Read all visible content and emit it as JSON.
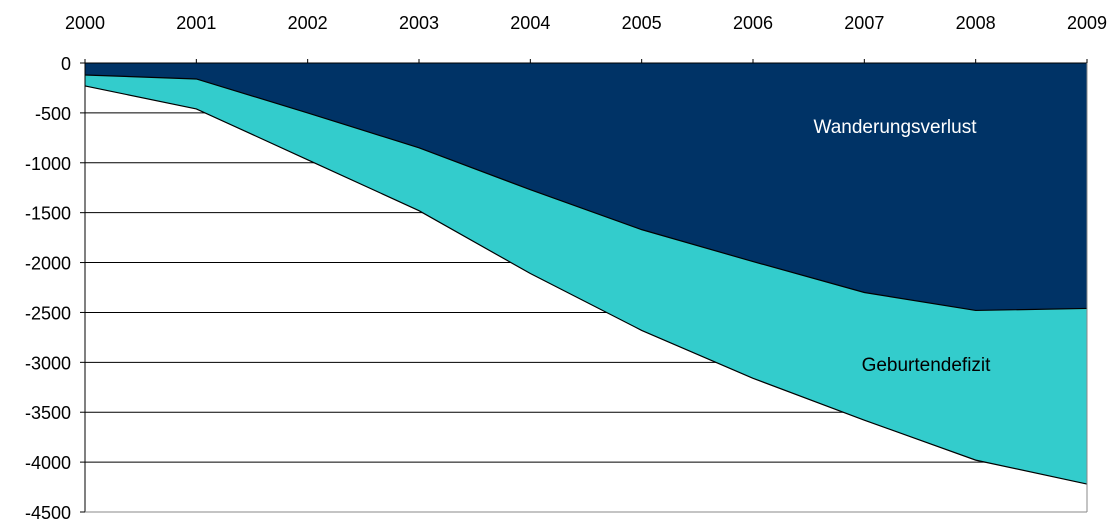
{
  "chart_data": {
    "type": "area",
    "x": [
      2000,
      2001,
      2002,
      2003,
      2004,
      2005,
      2006,
      2007,
      2008,
      2009
    ],
    "categories": [
      "2000",
      "2001",
      "2002",
      "2003",
      "2004",
      "2005",
      "2006",
      "2007",
      "2008",
      "2009"
    ],
    "stacked": true,
    "series": [
      {
        "name": "Wanderungsverlust",
        "values": [
          -120,
          -160,
          -500,
          -850,
          -1270,
          -1670,
          -1990,
          -2300,
          -2480,
          -2460
        ],
        "color": "#003366"
      },
      {
        "name": "Geburtendefizit",
        "values": [
          -110,
          -300,
          -470,
          -630,
          -840,
          -1010,
          -1170,
          -1280,
          -1500,
          -1760
        ],
        "color": "#33CCCC"
      }
    ],
    "ylim": [
      -4500,
      0
    ],
    "yticks": [
      0,
      -500,
      -1000,
      -1500,
      -2000,
      -2500,
      -3000,
      -3500,
      -4000,
      -4500
    ],
    "ytick_labels": [
      "0",
      "-500",
      "-1000",
      "-1500",
      "-2000",
      "-2500",
      "-3000",
      "-3500",
      "-4000",
      "-4500"
    ],
    "x_axis_position": "top",
    "grid": "horizontal",
    "annotations": {
      "wanderungsverlust": "Wanderungsverlust",
      "geburtendefizit": "Geburtendefizit"
    },
    "annotation_colors": {
      "wanderungsverlust": "#FFFFFF",
      "geburtendefizit": "#000000"
    }
  }
}
